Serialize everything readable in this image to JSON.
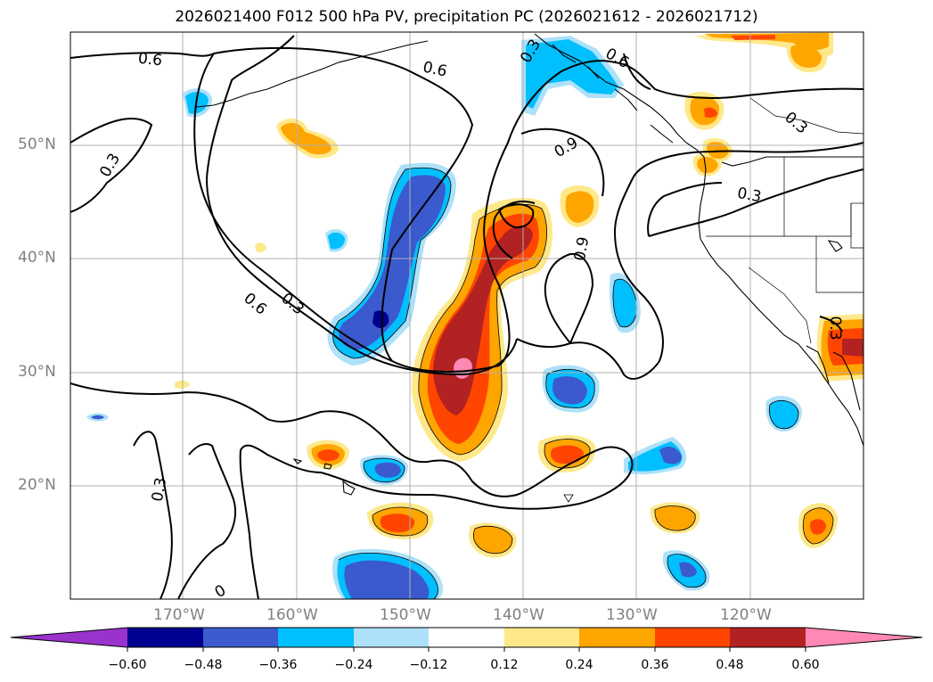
{
  "title": "2026021400 F012 500 hPa PV, precipitation PC (2026021612 - 2026021712)",
  "map": {
    "lat_labels": [
      "50°N",
      "40°N",
      "30°N",
      "20°N"
    ],
    "lon_labels": [
      "170°W",
      "160°W",
      "150°W",
      "140°W",
      "130°W",
      "120°W"
    ],
    "pv_contour_labels": [
      "0.6",
      "0.6",
      "0.3",
      "0.6",
      "0.9",
      "0.3",
      "0.3",
      "0.6",
      "0.3",
      "0.9",
      "0.3",
      "0.3",
      "0.3",
      "0"
    ]
  },
  "colorbar": {
    "tick_labels": [
      "−0.60",
      "−0.48",
      "−0.36",
      "−0.24",
      "−0.12",
      "0.12",
      "0.24",
      "0.36",
      "0.48",
      "0.60"
    ],
    "colors": {
      "lt_-0.60": "#9a33cc",
      "-0.60_-0.48": "#000090",
      "-0.48_-0.36": "#3a5acd",
      "-0.36_-0.24": "#00bfff",
      "-0.24_-0.12": "#ade1f9",
      "-0.12_0.12": "#ffffff",
      "0.12_0.24": "#ffe88a",
      "0.24_0.36": "#ffa500",
      "0.36_0.48": "#ff4500",
      "0.48_0.60": "#b22222",
      "gt_0.60": "#ff88b4"
    }
  }
}
